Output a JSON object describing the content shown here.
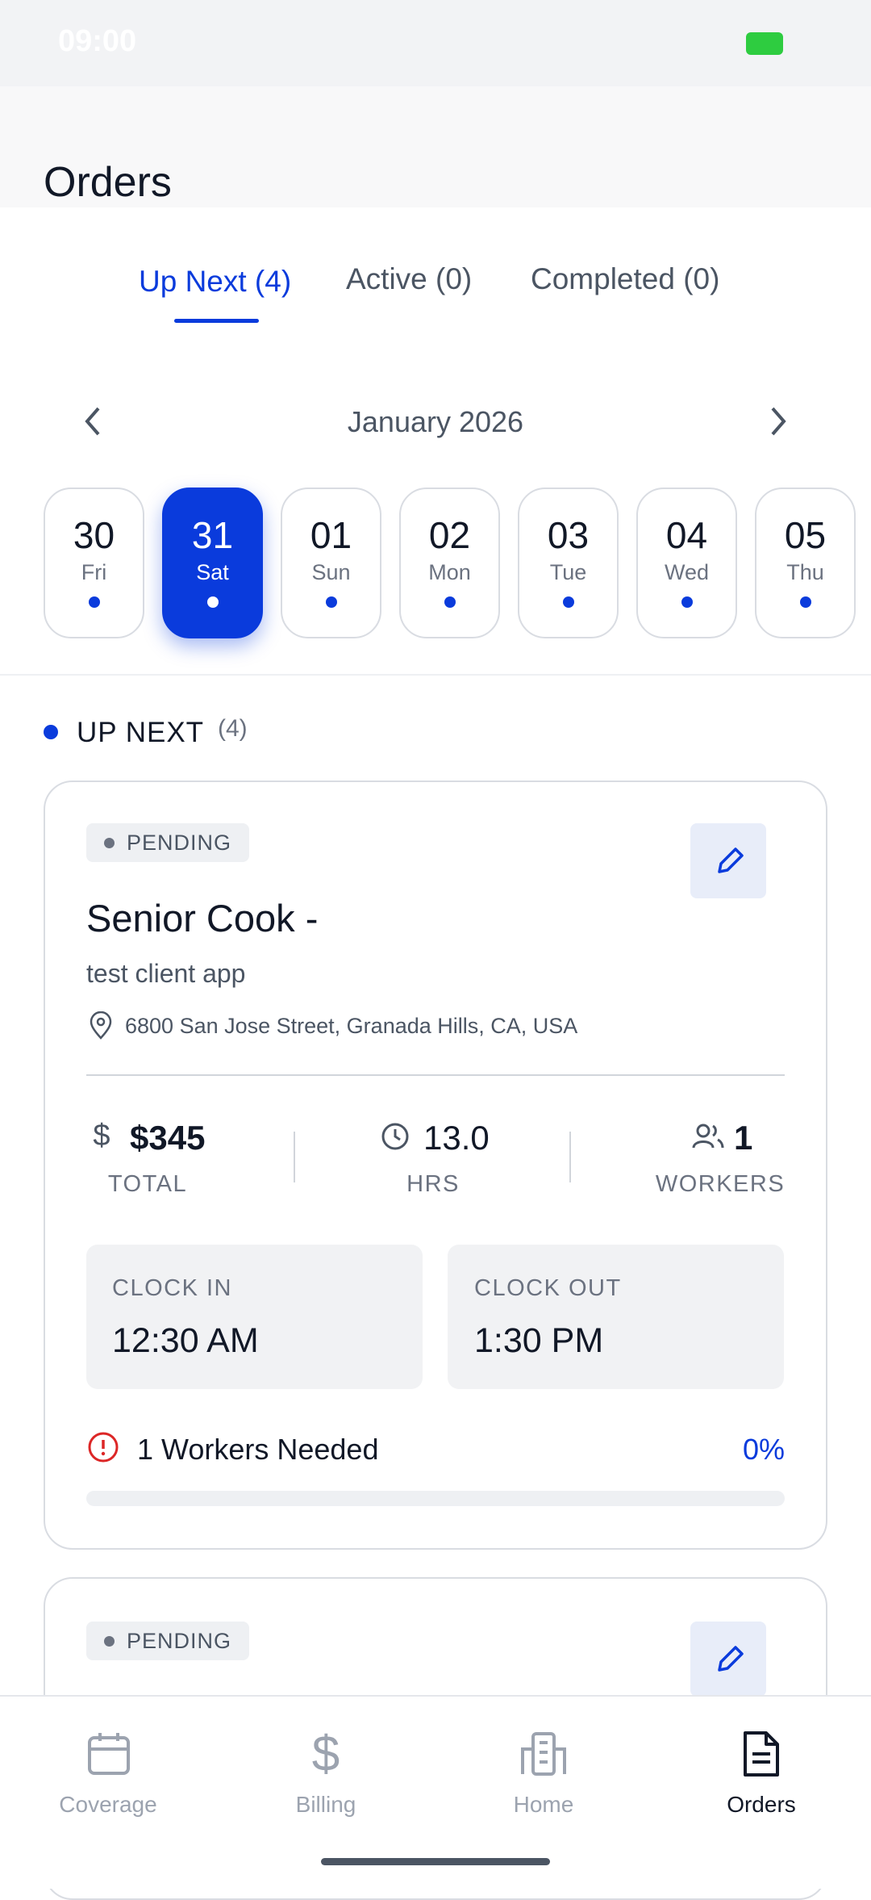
{
  "status_bar": {
    "time": "09:00"
  },
  "header": {
    "title": "Orders"
  },
  "tabs": [
    "Up Next (4)",
    "Active (0)",
    "Completed (0)"
  ],
  "calendar": {
    "month": "January 2026",
    "days": [
      {
        "date": "30",
        "weekday": "Fri"
      },
      {
        "date": "31",
        "weekday": "Sat"
      },
      {
        "date": "01",
        "weekday": "Sun"
      },
      {
        "date": "02",
        "weekday": "Mon"
      },
      {
        "date": "03",
        "weekday": "Tue"
      },
      {
        "date": "04",
        "weekday": "Wed"
      },
      {
        "date": "05",
        "weekday": "Thu"
      }
    ]
  },
  "section": {
    "title": "UP NEXT",
    "count": "(4)"
  },
  "orders": [
    {
      "status": "PENDING",
      "title": "Senior Cook -",
      "client": "test client app",
      "address": "6800 San Jose Street, Granada Hills, CA, USA",
      "total": "$345",
      "total_label": "TOTAL",
      "hours": "13.0",
      "hours_label": "HRS",
      "workers": "1",
      "workers_label": "WORKERS",
      "clock_in_label": "CLOCK IN",
      "clock_in": "12:30 AM",
      "clock_out_label": "CLOCK OUT",
      "clock_out": "1:30 PM",
      "needed": "1 Workers Needed",
      "progress": "0%"
    },
    {
      "status": "PENDING"
    }
  ],
  "nav": [
    "Coverage",
    "Billing",
    "Home",
    "Orders"
  ]
}
